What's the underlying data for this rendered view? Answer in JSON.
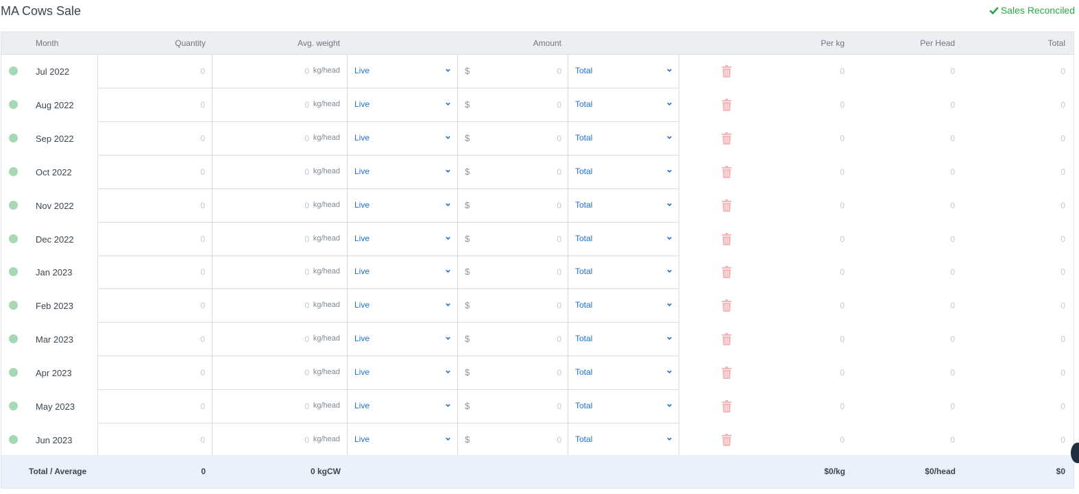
{
  "page": {
    "title": "MA Cows Sale",
    "status": "Sales Reconciled",
    "status_icon": "check-icon",
    "status_color": "#28a745"
  },
  "columns": {
    "month": "Month",
    "quantity": "Quantity",
    "avg_weight": "Avg. weight",
    "amount": "Amount",
    "per_kg": "Per kg",
    "per_head": "Per Head",
    "total": "Total"
  },
  "rows": [
    {
      "month": "Jul 2022",
      "quantity": "0",
      "weight": "0",
      "weight_unit": "kg/head",
      "weight_type": "Live",
      "currency": "$",
      "amount": "0",
      "amount_mode": "Total",
      "per_kg": "0",
      "per_head": "0",
      "total": "0"
    },
    {
      "month": "Aug 2022",
      "quantity": "0",
      "weight": "0",
      "weight_unit": "kg/head",
      "weight_type": "Live",
      "currency": "$",
      "amount": "0",
      "amount_mode": "Total",
      "per_kg": "0",
      "per_head": "0",
      "total": "0"
    },
    {
      "month": "Sep 2022",
      "quantity": "0",
      "weight": "0",
      "weight_unit": "kg/head",
      "weight_type": "Live",
      "currency": "$",
      "amount": "0",
      "amount_mode": "Total",
      "per_kg": "0",
      "per_head": "0",
      "total": "0"
    },
    {
      "month": "Oct 2022",
      "quantity": "0",
      "weight": "0",
      "weight_unit": "kg/head",
      "weight_type": "Live",
      "currency": "$",
      "amount": "0",
      "amount_mode": "Total",
      "per_kg": "0",
      "per_head": "0",
      "total": "0"
    },
    {
      "month": "Nov 2022",
      "quantity": "0",
      "weight": "0",
      "weight_unit": "kg/head",
      "weight_type": "Live",
      "currency": "$",
      "amount": "0",
      "amount_mode": "Total",
      "per_kg": "0",
      "per_head": "0",
      "total": "0"
    },
    {
      "month": "Dec 2022",
      "quantity": "0",
      "weight": "0",
      "weight_unit": "kg/head",
      "weight_type": "Live",
      "currency": "$",
      "amount": "0",
      "amount_mode": "Total",
      "per_kg": "0",
      "per_head": "0",
      "total": "0"
    },
    {
      "month": "Jan 2023",
      "quantity": "0",
      "weight": "0",
      "weight_unit": "kg/head",
      "weight_type": "Live",
      "currency": "$",
      "amount": "0",
      "amount_mode": "Total",
      "per_kg": "0",
      "per_head": "0",
      "total": "0"
    },
    {
      "month": "Feb 2023",
      "quantity": "0",
      "weight": "0",
      "weight_unit": "kg/head",
      "weight_type": "Live",
      "currency": "$",
      "amount": "0",
      "amount_mode": "Total",
      "per_kg": "0",
      "per_head": "0",
      "total": "0"
    },
    {
      "month": "Mar 2023",
      "quantity": "0",
      "weight": "0",
      "weight_unit": "kg/head",
      "weight_type": "Live",
      "currency": "$",
      "amount": "0",
      "amount_mode": "Total",
      "per_kg": "0",
      "per_head": "0",
      "total": "0"
    },
    {
      "month": "Apr 2023",
      "quantity": "0",
      "weight": "0",
      "weight_unit": "kg/head",
      "weight_type": "Live",
      "currency": "$",
      "amount": "0",
      "amount_mode": "Total",
      "per_kg": "0",
      "per_head": "0",
      "total": "0"
    },
    {
      "month": "May 2023",
      "quantity": "0",
      "weight": "0",
      "weight_unit": "kg/head",
      "weight_type": "Live",
      "currency": "$",
      "amount": "0",
      "amount_mode": "Total",
      "per_kg": "0",
      "per_head": "0",
      "total": "0"
    },
    {
      "month": "Jun 2023",
      "quantity": "0",
      "weight": "0",
      "weight_unit": "kg/head",
      "weight_type": "Live",
      "currency": "$",
      "amount": "0",
      "amount_mode": "Total",
      "per_kg": "0",
      "per_head": "0",
      "total": "0"
    }
  ],
  "footer": {
    "label": "Total / Average",
    "quantity": "0",
    "avg_weight": "0 kgCW",
    "per_kg": "$0/kg",
    "per_head": "$0/head",
    "total": "$0"
  },
  "colors": {
    "row_status_dot": "#a5d9b4",
    "select_text": "#1d6fd0",
    "delete_icon": "#f4b6b6",
    "footer_bg": "#eaf1fa"
  }
}
